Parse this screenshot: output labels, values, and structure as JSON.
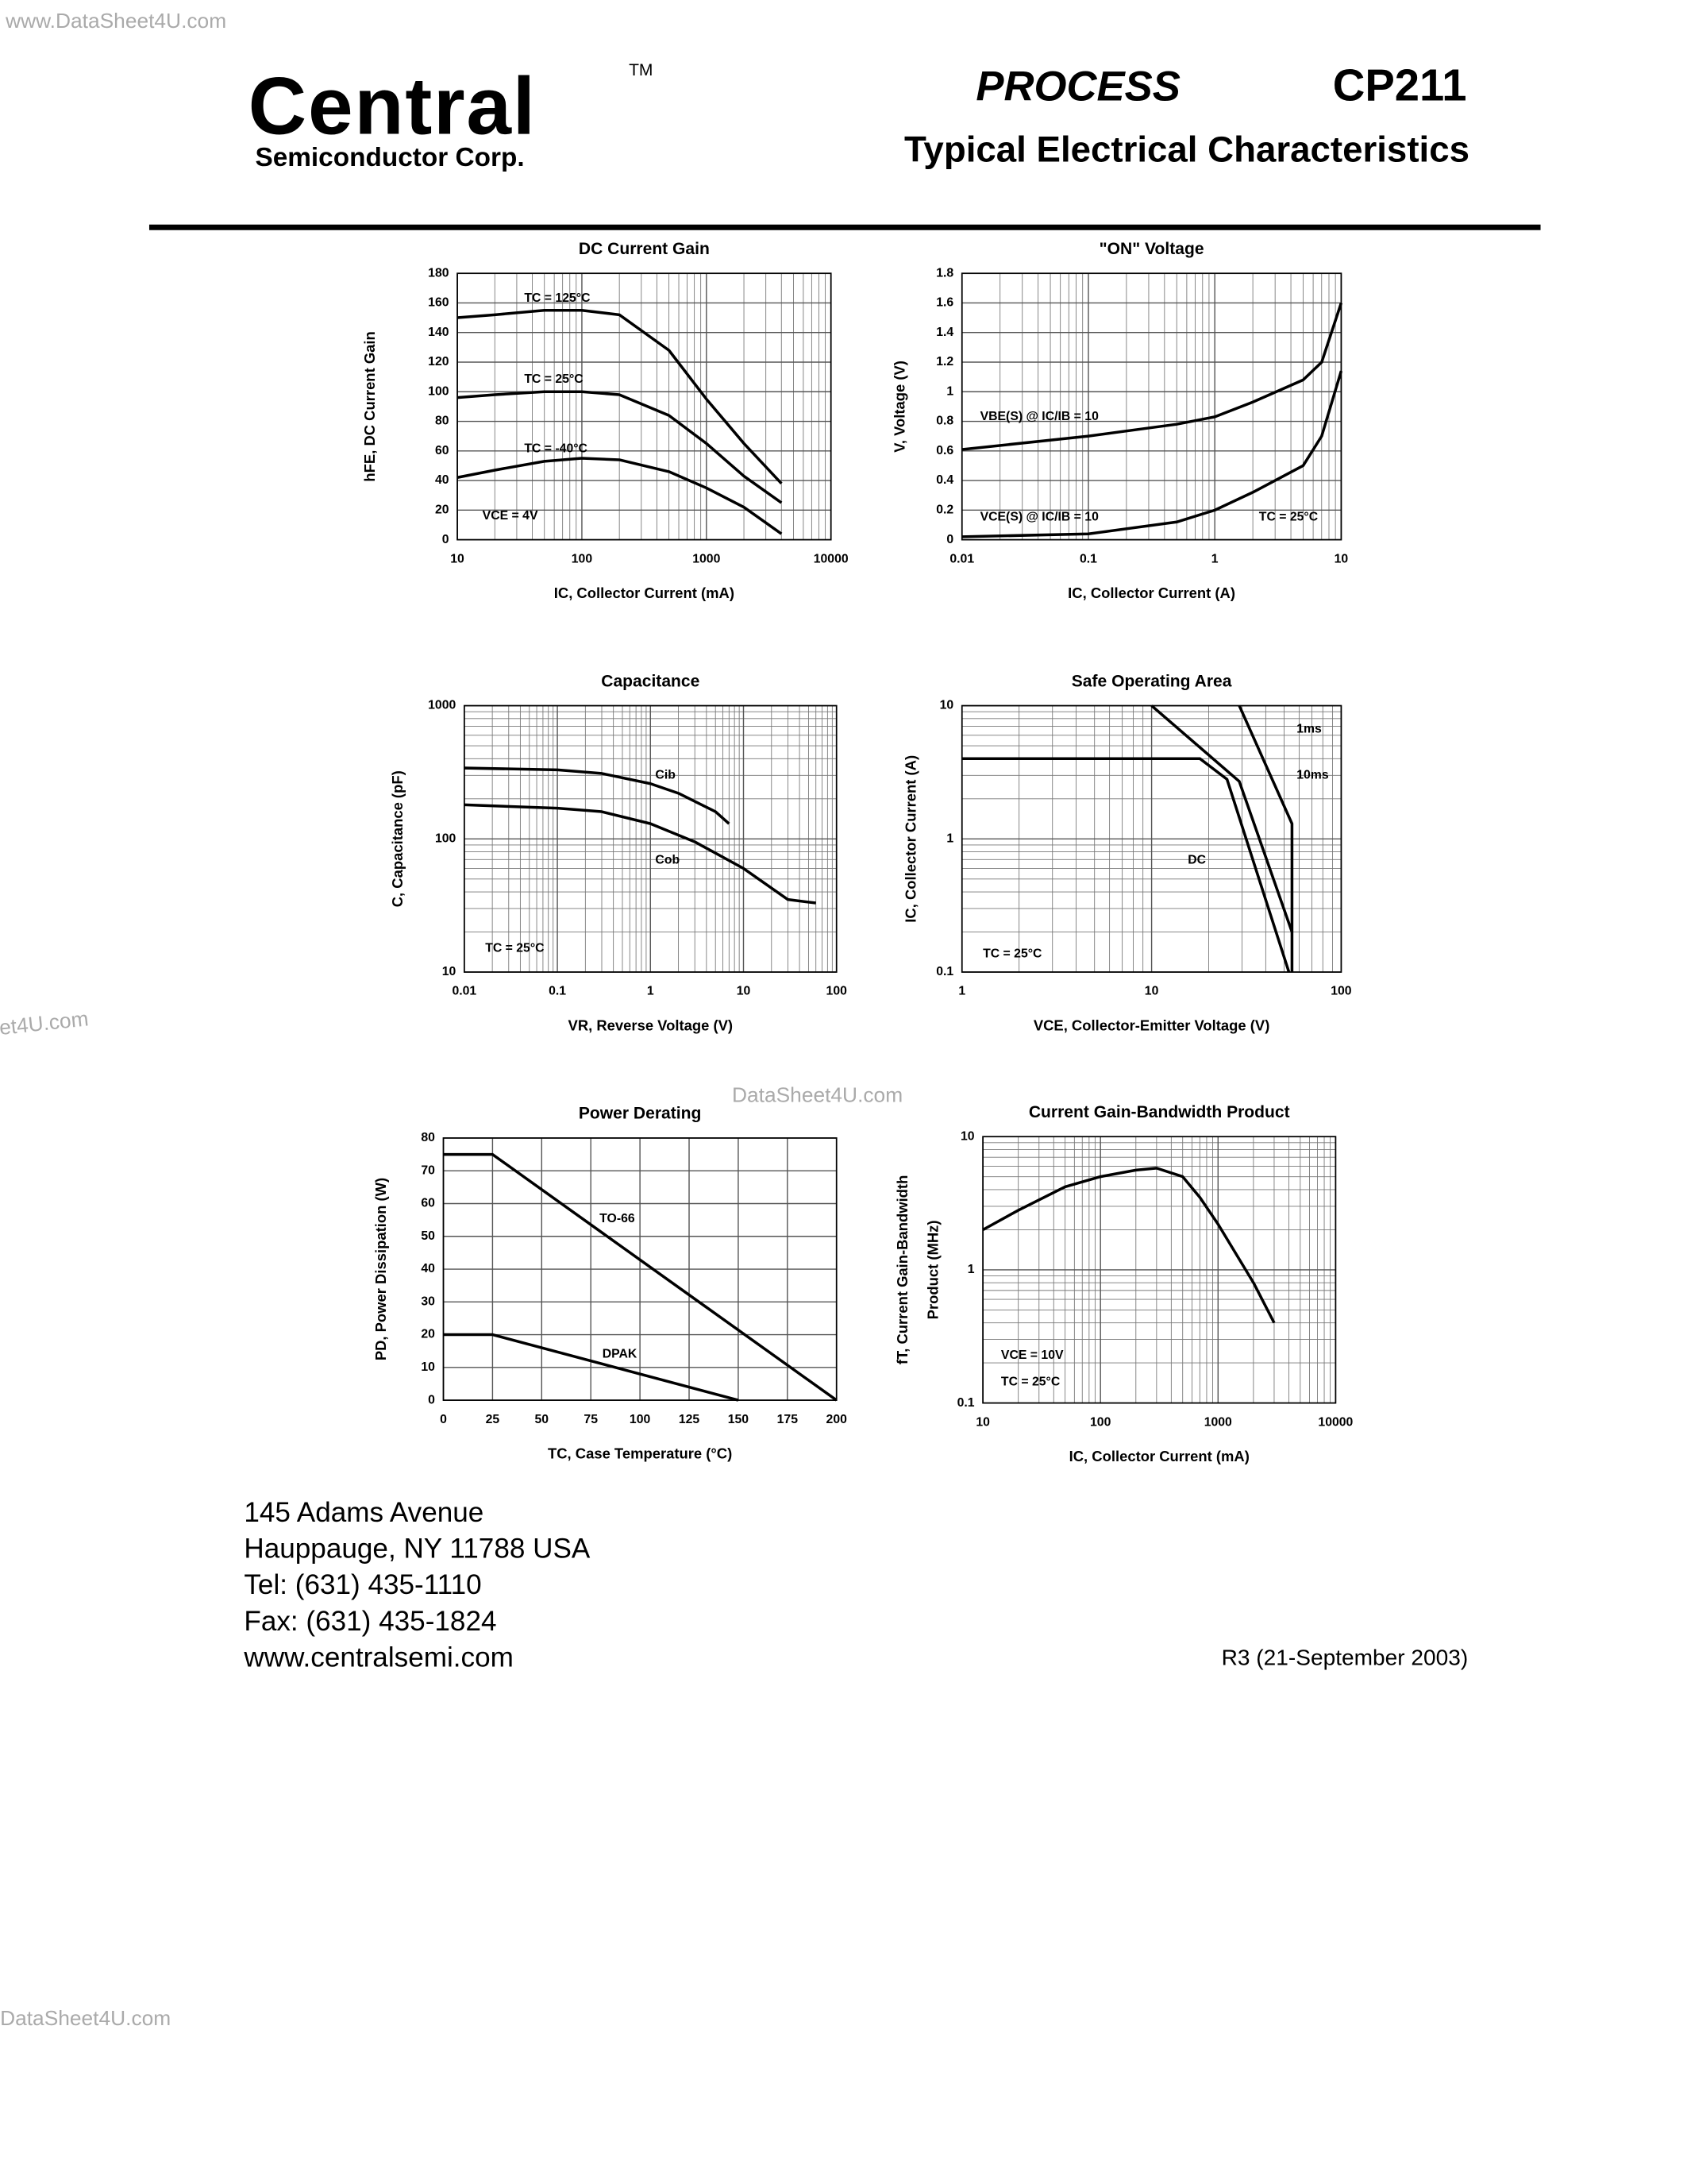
{
  "header": {
    "logo": "Central",
    "trademark": "TM",
    "company": "Semiconductor Corp.",
    "process": "PROCESS",
    "part": "CP211",
    "title": "Typical Electrical Characteristics"
  },
  "watermarks": [
    "www.DataSheet4U.com",
    "et4U.com",
    "DataSheet4U.com",
    "DataSheet4U.com"
  ],
  "footer": {
    "address": [
      "145 Adams Avenue",
      "Hauppauge, NY  11788  USA",
      "Tel:  (631) 435-1110",
      "Fax: (631) 435-1824",
      "www.centralsemi.com"
    ],
    "revision": "R3 (21-September 2003)"
  },
  "chart_data": [
    {
      "type": "line",
      "title": "DC Current Gain",
      "xlabel": "IC, Collector Current (mA)",
      "ylabel": "hFE, DC Current Gain",
      "xscale": "log",
      "yscale": "linear",
      "xlim": [
        10,
        10000
      ],
      "ylim": [
        0,
        180
      ],
      "xticks": [
        10,
        100,
        1000,
        10000
      ],
      "yticks": [
        0,
        20,
        40,
        60,
        80,
        100,
        120,
        140,
        160,
        180
      ],
      "grid": true,
      "color": "#000000",
      "series": [
        {
          "name": "TC = 125°C",
          "x": [
            10,
            20,
            50,
            100,
            200,
            500,
            1000,
            2000,
            4000
          ],
          "values": [
            150,
            152,
            155,
            155,
            152,
            128,
            95,
            65,
            38
          ]
        },
        {
          "name": "TC = 25°C",
          "x": [
            10,
            20,
            50,
            100,
            200,
            500,
            1000,
            2000,
            4000
          ],
          "values": [
            96,
            98,
            100,
            100,
            98,
            84,
            65,
            43,
            25
          ]
        },
        {
          "name": "TC = -40°C",
          "x": [
            10,
            20,
            50,
            100,
            200,
            500,
            1000,
            2000,
            4000
          ],
          "values": [
            42,
            47,
            53,
            55,
            54,
            46,
            35,
            22,
            4
          ]
        }
      ],
      "annotations": [
        "VCE = 4V"
      ]
    },
    {
      "type": "line",
      "title": "\"ON\" Voltage",
      "xlabel": "IC, Collector Current (A)",
      "ylabel": "V, Voltage (V)",
      "xscale": "log",
      "yscale": "linear",
      "xlim": [
        0.01,
        10
      ],
      "ylim": [
        0,
        1.8
      ],
      "xticks": [
        0.01,
        0.1,
        1,
        10
      ],
      "yticks": [
        0,
        0.2,
        0.4,
        0.6,
        0.8,
        1,
        1.2,
        1.4,
        1.6,
        1.8
      ],
      "grid": true,
      "color": "#000000",
      "series": [
        {
          "name": "VBE(S) @ IC/IB = 10",
          "x": [
            0.01,
            0.1,
            0.5,
            1,
            2,
            5,
            7,
            10
          ],
          "values": [
            0.61,
            0.7,
            0.78,
            0.83,
            0.93,
            1.08,
            1.2,
            1.6
          ]
        },
        {
          "name": "VCE(S) @ IC/IB = 10",
          "x": [
            0.01,
            0.1,
            0.5,
            1,
            2,
            5,
            7,
            10
          ],
          "values": [
            0.02,
            0.04,
            0.12,
            0.2,
            0.32,
            0.5,
            0.7,
            1.14
          ]
        }
      ],
      "annotations": [
        "TC = 25°C"
      ]
    },
    {
      "type": "line",
      "title": "Capacitance",
      "xlabel": "VR, Reverse Voltage (V)",
      "ylabel": "C, Capacitance (pF)",
      "xscale": "log",
      "yscale": "log",
      "xlim": [
        0.01,
        100
      ],
      "ylim": [
        10,
        1000
      ],
      "xticks": [
        0.01,
        0.1,
        1,
        10,
        100
      ],
      "yticks": [
        10,
        100,
        1000
      ],
      "grid": true,
      "color": "#000000",
      "series": [
        {
          "name": "Cib",
          "x": [
            0.01,
            0.1,
            0.3,
            1,
            2,
            5,
            7
          ],
          "values": [
            340,
            330,
            310,
            260,
            220,
            160,
            130
          ]
        },
        {
          "name": "Cob",
          "x": [
            0.01,
            0.1,
            0.3,
            1,
            3,
            10,
            30,
            60
          ],
          "values": [
            180,
            170,
            160,
            130,
            95,
            60,
            35,
            33
          ]
        }
      ],
      "annotations": [
        "TC = 25°C"
      ]
    },
    {
      "type": "line",
      "title": "Safe Operating Area",
      "xlabel": "VCE, Collector-Emitter Voltage (V)",
      "ylabel": "IC, Collector Current (A)",
      "xscale": "log",
      "yscale": "log",
      "xlim": [
        1,
        100
      ],
      "ylim": [
        0.1,
        10
      ],
      "xticks": [
        1,
        10,
        100
      ],
      "yticks": [
        0.1,
        1,
        10
      ],
      "grid": true,
      "color": "#000000",
      "series": [
        {
          "name": "DC",
          "x": [
            1,
            18,
            25,
            53
          ],
          "values": [
            4,
            4,
            2.8,
            0.1
          ]
        },
        {
          "name": "10ms",
          "x": [
            10,
            29,
            55
          ],
          "values": [
            10,
            2.7,
            0.2
          ]
        },
        {
          "name": "1ms",
          "x": [
            29,
            55,
            55
          ],
          "values": [
            10,
            1.3,
            0.1
          ]
        }
      ],
      "annotations": [
        "TC = 25°C"
      ]
    },
    {
      "type": "line",
      "title": "Power Derating",
      "xlabel": "TC, Case Temperature (°C)",
      "ylabel": "PD, Power Dissipation (W)",
      "xscale": "linear",
      "yscale": "linear",
      "xlim": [
        0,
        200
      ],
      "ylim": [
        0,
        80
      ],
      "xticks": [
        0,
        25,
        50,
        75,
        100,
        125,
        150,
        175,
        200
      ],
      "yticks": [
        0,
        10,
        20,
        30,
        40,
        50,
        60,
        70,
        80
      ],
      "grid": true,
      "color": "#000000",
      "series": [
        {
          "name": "TO-66",
          "x": [
            0,
            25,
            200
          ],
          "values": [
            75,
            75,
            0
          ]
        },
        {
          "name": "DPAK",
          "x": [
            0,
            25,
            150
          ],
          "values": [
            20,
            20,
            0
          ]
        }
      ],
      "annotations": []
    },
    {
      "type": "line",
      "title": "Current Gain-Bandwidth Product",
      "xlabel": "IC, Collector Current (mA)",
      "ylabel": [
        "fT, Current Gain-Bandwidth",
        "Product (MHz)"
      ],
      "xscale": "log",
      "yscale": "log",
      "xlim": [
        10,
        10000
      ],
      "ylim": [
        0.1,
        10
      ],
      "xticks": [
        10,
        100,
        1000,
        10000
      ],
      "yticks": [
        0.1,
        1,
        10
      ],
      "grid": true,
      "color": "#000000",
      "series": [
        {
          "name": "",
          "x": [
            10,
            20,
            50,
            100,
            200,
            300,
            500,
            700,
            1000,
            2000,
            3000
          ],
          "values": [
            2,
            2.8,
            4.2,
            5,
            5.6,
            5.8,
            5,
            3.5,
            2.2,
            0.8,
            0.4
          ]
        }
      ],
      "annotations": [
        "VCE = 10V",
        "TC = 25°C"
      ]
    }
  ]
}
